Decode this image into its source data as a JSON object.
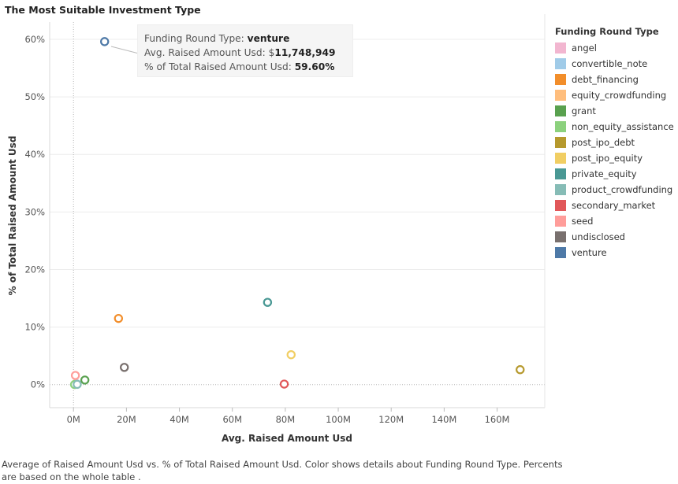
{
  "title": "The Most Suitable Investment Type",
  "legend": {
    "title": "Funding Round Type"
  },
  "tooltip": {
    "label1": "Funding Round Type:",
    "value1": "venture",
    "label2": "Avg. Raised Amount Usd: $",
    "value2": "11,748,949",
    "label3": "% of Total Raised Amount Usd:",
    "value3": "59.60%"
  },
  "footer": {
    "line1": "Average of Raised Amount Usd vs. % of Total Raised Amount Usd.  Color shows details about Funding Round Type. Percents",
    "line2": "are based on the whole table ."
  },
  "chart_data": {
    "type": "scatter",
    "title": "The Most Suitable Investment Type",
    "xlabel": "Avg. Raised Amount Usd",
    "ylabel": "% of Total Raised Amount Usd",
    "xlim": [
      -9000000,
      178000000
    ],
    "ylim": [
      -4,
      63
    ],
    "x_ticks": [
      0,
      20000000,
      40000000,
      60000000,
      80000000,
      100000000,
      120000000,
      140000000,
      160000000
    ],
    "x_tick_labels": [
      "0M",
      "20M",
      "40M",
      "60M",
      "80M",
      "100M",
      "120M",
      "140M",
      "160M"
    ],
    "y_ticks": [
      0,
      10,
      20,
      30,
      40,
      50,
      60
    ],
    "y_tick_labels": [
      "0%",
      "10%",
      "20%",
      "30%",
      "40%",
      "50%",
      "60%"
    ],
    "grid": true,
    "legend_position": "right",
    "series": [
      {
        "name": "angel",
        "color": "#f2b6d0",
        "x": 950000,
        "y": 0.2
      },
      {
        "name": "convertible_note",
        "color": "#a0cbe8",
        "x": 1400000,
        "y": 0.1
      },
      {
        "name": "debt_financing",
        "color": "#f28e2b",
        "x": 17000000,
        "y": 11.5
      },
      {
        "name": "equity_crowdfunding",
        "color": "#ffbe7d",
        "x": 500000,
        "y": 0.05
      },
      {
        "name": "grant",
        "color": "#59a14f",
        "x": 4300000,
        "y": 0.8
      },
      {
        "name": "non_equity_assistance",
        "color": "#8cd17d",
        "x": 400000,
        "y": 0.02
      },
      {
        "name": "post_ipo_debt",
        "color": "#b6992d",
        "x": 168700000,
        "y": 2.6
      },
      {
        "name": "post_ipo_equity",
        "color": "#f1ce63",
        "x": 82200000,
        "y": 5.2
      },
      {
        "name": "private_equity",
        "color": "#499894",
        "x": 73300000,
        "y": 14.3
      },
      {
        "name": "product_crowdfunding",
        "color": "#86bcb6",
        "x": 1400000,
        "y": 0.05
      },
      {
        "name": "secondary_market",
        "color": "#e15759",
        "x": 79600000,
        "y": 0.1
      },
      {
        "name": "seed",
        "color": "#ff9d9a",
        "x": 720000,
        "y": 1.6
      },
      {
        "name": "undisclosed",
        "color": "#79706e",
        "x": 19200000,
        "y": 3.0
      },
      {
        "name": "venture",
        "color": "#4e79a7",
        "x": 11748949,
        "y": 59.6
      }
    ]
  }
}
